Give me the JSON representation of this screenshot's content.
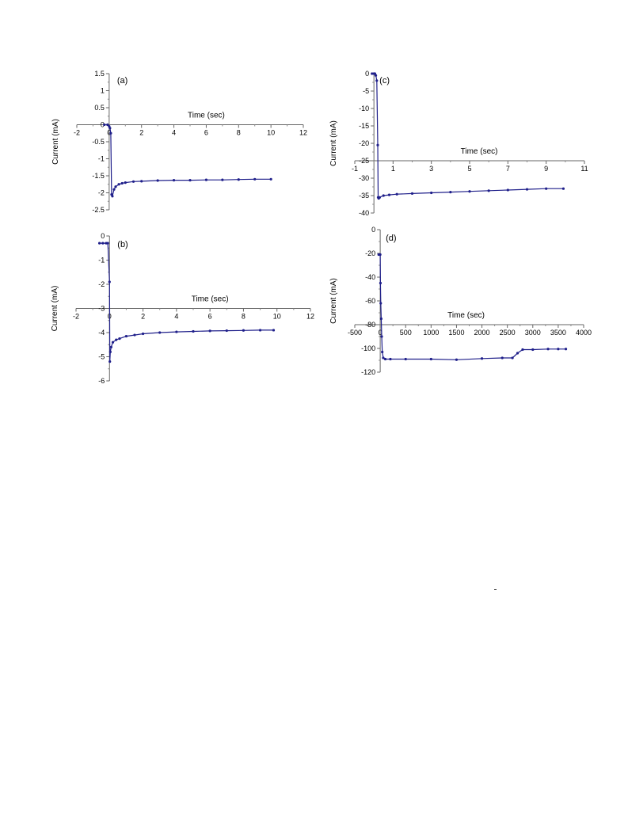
{
  "chart_data": [
    {
      "type": "scatter",
      "panel_label": "(a)",
      "xlabel": "Time (sec)",
      "ylabel": "Current (mA)",
      "xlim": [
        -2,
        12
      ],
      "ylim": [
        -2.5,
        1.5
      ],
      "xticks": [
        -2,
        0,
        2,
        4,
        6,
        8,
        10,
        12
      ],
      "yticks": [
        1.5,
        1,
        0.5,
        0,
        -0.5,
        -1,
        -1.5,
        -2,
        -2.5
      ],
      "x": [
        -0.3,
        -0.1,
        0.0,
        0.05,
        0.1,
        0.15,
        0.2,
        0.3,
        0.4,
        0.6,
        0.8,
        1.0,
        1.5,
        2,
        3,
        4,
        5,
        6,
        7,
        8,
        9,
        10
      ],
      "y": [
        0.0,
        0.0,
        -0.05,
        -0.1,
        -0.25,
        -2.05,
        -2.1,
        -1.9,
        -1.82,
        -1.75,
        -1.72,
        -1.7,
        -1.67,
        -1.66,
        -1.64,
        -1.63,
        -1.63,
        -1.62,
        -1.62,
        -1.61,
        -1.6,
        -1.6
      ],
      "series_color": "#1f1f8a"
    },
    {
      "type": "scatter",
      "panel_label": "(b)",
      "xlabel": "Time (sec)",
      "ylabel": "Current (mA)",
      "xlim": [
        -2,
        12
      ],
      "ylim": [
        -6,
        0
      ],
      "xticks": [
        -2,
        0,
        2,
        4,
        6,
        8,
        10,
        12
      ],
      "yticks": [
        0,
        -1,
        -2,
        -3,
        -4,
        -5,
        -6
      ],
      "x": [
        -0.6,
        -0.4,
        -0.2,
        -0.1,
        0.0,
        0.02,
        0.05,
        0.1,
        0.2,
        0.4,
        0.6,
        1.0,
        1.5,
        2,
        3,
        4,
        5,
        6,
        7,
        8,
        9,
        9.8
      ],
      "y": [
        -0.3,
        -0.3,
        -0.3,
        -0.3,
        -1.9,
        -5.2,
        -4.8,
        -4.6,
        -4.4,
        -4.3,
        -4.25,
        -4.15,
        -4.1,
        -4.05,
        -4.0,
        -3.97,
        -3.95,
        -3.93,
        -3.92,
        -3.91,
        -3.9,
        -3.9
      ],
      "series_color": "#1f1f8a"
    },
    {
      "type": "scatter",
      "panel_label": "(c)",
      "xlabel": "Time (sec)",
      "ylabel": "Current (mA)",
      "xlim": [
        -1,
        11
      ],
      "ylim": [
        -40,
        0
      ],
      "xticks": [
        -1,
        1,
        3,
        5,
        7,
        9,
        11
      ],
      "yticks": [
        0,
        -5,
        -10,
        -15,
        -20,
        -25,
        -30,
        -35,
        -40
      ],
      "x": [
        -0.1,
        0.0,
        0.05,
        0.1,
        0.15,
        0.2,
        0.22,
        0.25,
        0.3,
        0.5,
        0.8,
        1.2,
        2,
        3,
        4,
        5,
        6,
        7,
        8,
        9,
        9.9
      ],
      "y": [
        0.0,
        0.0,
        0.0,
        -0.5,
        -2.0,
        -20.5,
        -35.5,
        -35.8,
        -35.5,
        -35.0,
        -34.8,
        -34.6,
        -34.4,
        -34.2,
        -34.0,
        -33.8,
        -33.6,
        -33.4,
        -33.2,
        -33.0,
        -33.0
      ],
      "series_color": "#1f1f8a"
    },
    {
      "type": "scatter",
      "panel_label": "(d)",
      "xlabel": "Time (sec)",
      "ylabel": "Current (mA)",
      "xlim": [
        -500,
        4000
      ],
      "ylim": [
        -120,
        0
      ],
      "xticks": [
        -500,
        0,
        500,
        1000,
        1500,
        2000,
        2500,
        3000,
        3500,
        4000
      ],
      "yticks": [
        0,
        -20,
        -40,
        -60,
        -80,
        -100,
        -120
      ],
      "x": [
        -30,
        -10,
        0,
        5,
        10,
        20,
        30,
        40,
        60,
        100,
        200,
        500,
        1000,
        1500,
        2000,
        2400,
        2600,
        2700,
        2800,
        3000,
        3300,
        3500,
        3650
      ],
      "y": [
        -21,
        -21,
        -21,
        -45,
        -62,
        -75,
        -90,
        -103,
        -108,
        -109,
        -109,
        -109,
        -109,
        -109.5,
        -108.5,
        -108,
        -108,
        -104,
        -101,
        -101,
        -100.5,
        -100.5,
        -100.5
      ],
      "series_color": "#1f1f8a"
    }
  ]
}
